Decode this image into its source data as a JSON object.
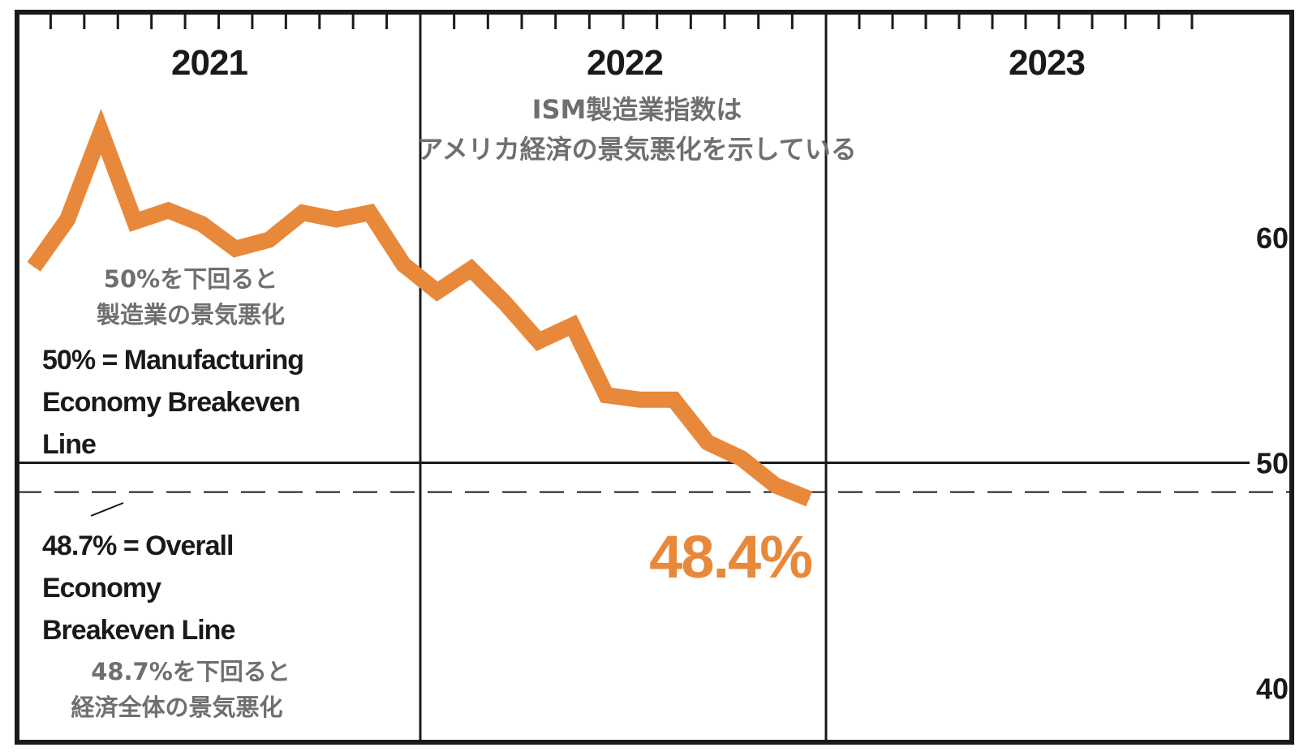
{
  "title": {
    "line1": "ISM製造業指数は",
    "line2": "アメリカ経済の景気悪化を示している"
  },
  "annotations": {
    "mfg_jp_line1": "50%を下回ると",
    "mfg_jp_line2": "製造業の景気悪化",
    "mfg_en_line1": "50% = Manufacturing",
    "mfg_en_line2": "Economy Breakeven",
    "mfg_en_line3": "Line",
    "overall_en_line1": "48.7% = Overall",
    "overall_en_line2": "Economy",
    "overall_en_line3": "Breakeven Line",
    "overall_jp_line1": "48.7%を下回ると",
    "overall_jp_line2": "経済全体の景気悪化",
    "latest_value": "48.4%"
  },
  "colors": {
    "series": "#e8883a",
    "frame": "#1a1a1a",
    "grey_text": "#6f6f6f"
  },
  "chart_data": {
    "type": "line",
    "title": "ISM製造業指数は アメリカ経済の景気悪化を示している",
    "xlabel": "",
    "ylabel": "",
    "x_categories": [
      "2021",
      "2022",
      "2023"
    ],
    "ylim": [
      37.6,
      70.0
    ],
    "yticks": [
      40,
      50,
      60
    ],
    "grid": "year dividers",
    "x": [
      "2021-01",
      "2021-02",
      "2021-03",
      "2021-04",
      "2021-05",
      "2021-06",
      "2021-07",
      "2021-08",
      "2021-09",
      "2021-10",
      "2021-11",
      "2021-12",
      "2022-01",
      "2022-02",
      "2022-03",
      "2022-04",
      "2022-05",
      "2022-06",
      "2022-07",
      "2022-08",
      "2022-09",
      "2022-10",
      "2022-11",
      "2022-12"
    ],
    "series": [
      {
        "values": [
          58.7,
          60.8,
          64.7,
          60.7,
          61.2,
          60.6,
          59.5,
          59.9,
          61.1,
          60.8,
          61.1,
          58.8,
          57.6,
          58.6,
          57.1,
          55.4,
          56.1,
          53.0,
          52.8,
          52.8,
          50.9,
          50.2,
          49.0,
          48.4
        ]
      }
    ],
    "reference_lines": [
      {
        "y": 50.0,
        "style": "solid"
      },
      {
        "y": 48.7,
        "style": "dashed"
      }
    ]
  }
}
